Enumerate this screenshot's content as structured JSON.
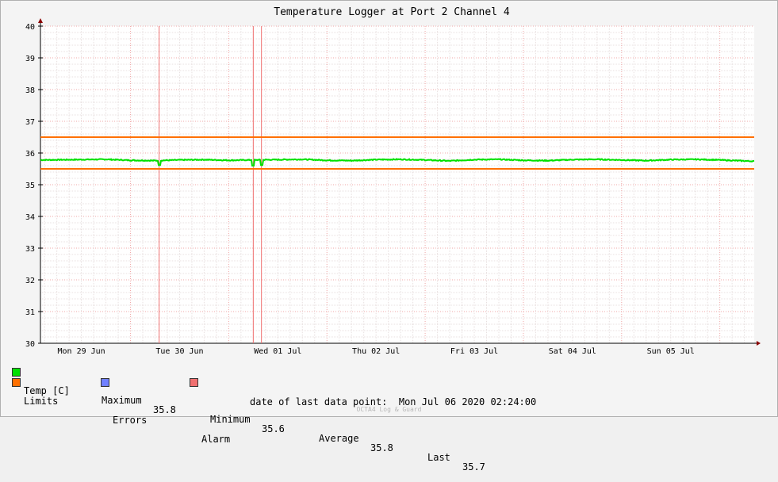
{
  "chart_data": {
    "type": "line",
    "title": "Temperature Logger at Port 2 Channel 4",
    "ylim": [
      30,
      40
    ],
    "yticks": [
      30,
      31,
      32,
      33,
      34,
      35,
      36,
      37,
      38,
      39,
      40
    ],
    "xlim": [
      "2020-06-28 20:00",
      "2020-07-06 02:24"
    ],
    "xticks": [
      {
        "label": "Mon 29 Jun",
        "at": "2020-06-29 06:00"
      },
      {
        "label": "Tue 30 Jun",
        "at": "2020-06-30 06:00"
      },
      {
        "label": "Wed 01 Jul",
        "at": "2020-07-01 06:00"
      },
      {
        "label": "Thu 02 Jul",
        "at": "2020-07-02 06:00"
      },
      {
        "label": "Fri 03 Jul",
        "at": "2020-07-03 06:00"
      },
      {
        "label": "Sat 04 Jul",
        "at": "2020-07-04 06:00"
      },
      {
        "label": "Sun 05 Jul",
        "at": "2020-07-05 06:00"
      }
    ],
    "grid": true,
    "series": [
      {
        "name": "Temp [C]",
        "color": "#00e000",
        "x": [
          "2020-06-28 20:00",
          "2020-06-29 04:00",
          "2020-06-29 12:00",
          "2020-06-29 18:00",
          "2020-06-30 00:00",
          "2020-06-30 06:00",
          "2020-06-30 12:00",
          "2020-06-30 18:00",
          "2020-07-01 00:00",
          "2020-07-01 06:00",
          "2020-07-01 12:00",
          "2020-07-01 18:00",
          "2020-07-02 00:00",
          "2020-07-02 06:00",
          "2020-07-02 12:00",
          "2020-07-02 18:00",
          "2020-07-03 00:00",
          "2020-07-03 06:00",
          "2020-07-03 12:00",
          "2020-07-03 18:00",
          "2020-07-04 00:00",
          "2020-07-04 06:00",
          "2020-07-04 12:00",
          "2020-07-04 18:00",
          "2020-07-05 00:00",
          "2020-07-05 06:00",
          "2020-07-05 12:00",
          "2020-07-05 18:00",
          "2020-07-06 00:00",
          "2020-07-06 02:24"
        ],
        "values": [
          35.78,
          35.79,
          35.8,
          35.77,
          35.76,
          35.78,
          35.79,
          35.77,
          35.78,
          35.79,
          35.8,
          35.77,
          35.76,
          35.79,
          35.8,
          35.78,
          35.75,
          35.79,
          35.8,
          35.77,
          35.76,
          35.79,
          35.8,
          35.78,
          35.76,
          35.79,
          35.8,
          35.78,
          35.75,
          35.74
        ]
      },
      {
        "name": "Limits",
        "color": "#ff7000",
        "values": [
          36.5,
          35.5
        ]
      },
      {
        "name": "Errors",
        "color": "#7080ff",
        "values": []
      },
      {
        "name": "Alarm",
        "color": "#f07070",
        "x": [
          "2020-06-30 01:00",
          "2020-07-01 00:00",
          "2020-07-01 02:00"
        ]
      }
    ],
    "dips": [
      {
        "x": "2020-06-30 01:00",
        "value": 35.62
      },
      {
        "x": "2020-07-01 00:00",
        "value": 35.6
      },
      {
        "x": "2020-07-01 02:00",
        "value": 35.62
      }
    ]
  },
  "legend": {
    "temp_label": "Temp [C]",
    "max_label": "Maximum",
    "max_value": "35.8",
    "min_label": "Minimum",
    "min_value": "35.6",
    "avg_label": "Average",
    "avg_value": "35.8",
    "last_label": "Last",
    "last_value": "35.7",
    "limits_label": "Limits",
    "errors_label": "Errors",
    "alarm_label": "Alarm"
  },
  "footer": {
    "date_label": "date of last data point:",
    "date_value": "Mon Jul 06 2020 02:24:00"
  },
  "brand": "OCTA4 Log & Guard"
}
